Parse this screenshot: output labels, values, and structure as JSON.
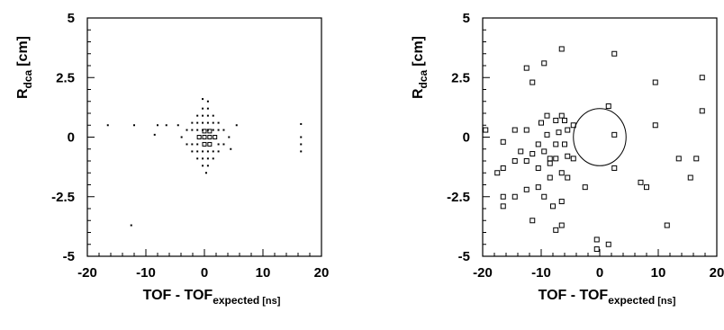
{
  "chart_data": [
    {
      "type": "scatter",
      "xlabel": {
        "main": "TOF - TOF",
        "sub": "expected",
        "unit": "[ns]"
      },
      "ylabel": {
        "main": "R",
        "sub": "dca",
        "unit": "[cm]"
      },
      "xlim": [
        -20,
        20
      ],
      "ylim": [
        -5,
        5
      ],
      "xticks": [
        "-20",
        "-10",
        "0",
        "10",
        "20"
      ],
      "yticks": [
        "-5",
        "-2.5",
        "0",
        "2.5",
        "5"
      ],
      "grid": false,
      "markers": "points-and-boxes",
      "boxes": [
        {
          "x": -0.9,
          "y": 0.0
        },
        {
          "x": 0.0,
          "y": 0.0
        },
        {
          "x": 0.9,
          "y": 0.0
        },
        {
          "x": 1.8,
          "y": 0.0
        },
        {
          "x": 0.0,
          "y": -0.3
        },
        {
          "x": 0.9,
          "y": -0.3
        },
        {
          "x": 0.0,
          "y": 0.25
        },
        {
          "x": 0.9,
          "y": 0.25
        }
      ],
      "points": [
        {
          "x": -3.0,
          "y": 0.3
        },
        {
          "x": -2.1,
          "y": 0.3
        },
        {
          "x": -1.2,
          "y": 0.3
        },
        {
          "x": -0.3,
          "y": 0.3
        },
        {
          "x": 0.6,
          "y": 0.3
        },
        {
          "x": 1.5,
          "y": 0.3
        },
        {
          "x": 2.4,
          "y": 0.3
        },
        {
          "x": 3.3,
          "y": 0.3
        },
        {
          "x": -3.0,
          "y": -0.3
        },
        {
          "x": -2.1,
          "y": -0.3
        },
        {
          "x": -1.2,
          "y": -0.3
        },
        {
          "x": 2.4,
          "y": -0.3
        },
        {
          "x": 3.3,
          "y": -0.3
        },
        {
          "x": 4.2,
          "y": 0.0
        },
        {
          "x": -3.9,
          "y": 0.0
        },
        {
          "x": -2.1,
          "y": 0.6
        },
        {
          "x": -1.2,
          "y": 0.6
        },
        {
          "x": -0.3,
          "y": 0.6
        },
        {
          "x": 0.6,
          "y": 0.6
        },
        {
          "x": 1.5,
          "y": 0.6
        },
        {
          "x": 2.4,
          "y": 0.6
        },
        {
          "x": -2.1,
          "y": -0.6
        },
        {
          "x": -1.2,
          "y": -0.6
        },
        {
          "x": -0.3,
          "y": -0.6
        },
        {
          "x": 0.6,
          "y": -0.6
        },
        {
          "x": 1.5,
          "y": -0.6
        },
        {
          "x": 2.4,
          "y": -0.6
        },
        {
          "x": -1.2,
          "y": 0.9
        },
        {
          "x": -0.3,
          "y": 0.9
        },
        {
          "x": 0.6,
          "y": 0.9
        },
        {
          "x": 1.5,
          "y": 0.9
        },
        {
          "x": -1.2,
          "y": -0.9
        },
        {
          "x": -0.3,
          "y": -0.9
        },
        {
          "x": 0.6,
          "y": -0.9
        },
        {
          "x": 1.5,
          "y": -0.9
        },
        {
          "x": -0.3,
          "y": 1.2
        },
        {
          "x": 0.6,
          "y": 1.2
        },
        {
          "x": -0.3,
          "y": -1.2
        },
        {
          "x": 0.6,
          "y": -1.2
        },
        {
          "x": -0.3,
          "y": 1.6
        },
        {
          "x": 0.6,
          "y": 1.5
        },
        {
          "x": 0.3,
          "y": -1.5
        },
        {
          "x": -4.5,
          "y": 0.5
        },
        {
          "x": -6.5,
          "y": 0.5
        },
        {
          "x": -8.0,
          "y": 0.5
        },
        {
          "x": -12.0,
          "y": 0.5
        },
        {
          "x": -16.5,
          "y": 0.5
        },
        {
          "x": 5.5,
          "y": 0.5
        },
        {
          "x": 4.5,
          "y": -0.5
        },
        {
          "x": 16.5,
          "y": 0.55
        },
        {
          "x": 16.5,
          "y": 0.0
        },
        {
          "x": 16.5,
          "y": -0.3
        },
        {
          "x": 16.5,
          "y": -0.6
        },
        {
          "x": -12.5,
          "y": -3.7
        },
        {
          "x": -8.5,
          "y": 0.1
        }
      ]
    },
    {
      "type": "scatter",
      "xlabel": {
        "main": "TOF - TOF",
        "sub": "expected",
        "unit": "[ns]"
      },
      "ylabel": {
        "main": "R",
        "sub": "dca",
        "unit": "[cm]"
      },
      "xlim": [
        -20,
        20
      ],
      "ylim": [
        -5,
        5
      ],
      "xticks": [
        "-20",
        "-10",
        "0",
        "10",
        "20"
      ],
      "yticks": [
        "-5",
        "-2.5",
        "0",
        "2.5",
        "5"
      ],
      "grid": false,
      "markers": "boxes",
      "ellipse": {
        "cx": 0.0,
        "cy": 0.0,
        "rx": 4.5,
        "ry": 1.2
      },
      "boxes": [
        {
          "x": -6.5,
          "y": 3.7
        },
        {
          "x": -12.5,
          "y": 2.9
        },
        {
          "x": -9.5,
          "y": 3.1
        },
        {
          "x": -11.5,
          "y": 2.3
        },
        {
          "x": 2.5,
          "y": 3.5
        },
        {
          "x": 17.5,
          "y": 2.5
        },
        {
          "x": 9.5,
          "y": 2.3
        },
        {
          "x": 17.5,
          "y": 1.1
        },
        {
          "x": -12.5,
          "y": 0.3
        },
        {
          "x": -9.0,
          "y": 0.9
        },
        {
          "x": -7.5,
          "y": 0.7
        },
        {
          "x": -10.0,
          "y": 0.6
        },
        {
          "x": -6.5,
          "y": 0.9
        },
        {
          "x": -6.0,
          "y": 0.7
        },
        {
          "x": -4.5,
          "y": 0.5
        },
        {
          "x": -5.5,
          "y": 0.3
        },
        {
          "x": -19.5,
          "y": 0.3
        },
        {
          "x": -14.5,
          "y": 0.3
        },
        {
          "x": -16.5,
          "y": -0.2
        },
        {
          "x": -13.5,
          "y": -0.6
        },
        {
          "x": 1.5,
          "y": 1.3
        },
        {
          "x": 2.5,
          "y": 0.1
        },
        {
          "x": 9.5,
          "y": 0.5
        },
        {
          "x": -7.0,
          "y": 0.2
        },
        {
          "x": -9.0,
          "y": 0.1
        },
        {
          "x": -10.5,
          "y": -0.3
        },
        {
          "x": -7.5,
          "y": -0.3
        },
        {
          "x": -6.0,
          "y": -0.3
        },
        {
          "x": -9.5,
          "y": -0.6
        },
        {
          "x": -11.5,
          "y": -0.7
        },
        {
          "x": -8.5,
          "y": -0.9
        },
        {
          "x": -7.5,
          "y": -0.9
        },
        {
          "x": -5.5,
          "y": -0.8
        },
        {
          "x": -4.5,
          "y": -0.9
        },
        {
          "x": -8.5,
          "y": -1.1
        },
        {
          "x": -10.5,
          "y": -1.3
        },
        {
          "x": -12.5,
          "y": -1.0
        },
        {
          "x": -14.5,
          "y": -1.0
        },
        {
          "x": -16.5,
          "y": -1.3
        },
        {
          "x": -17.5,
          "y": -1.5
        },
        {
          "x": -6.5,
          "y": -1.5
        },
        {
          "x": -8.5,
          "y": -1.7
        },
        {
          "x": -5.5,
          "y": -1.7
        },
        {
          "x": -12.5,
          "y": -2.2
        },
        {
          "x": -10.5,
          "y": -2.1
        },
        {
          "x": -14.5,
          "y": -2.5
        },
        {
          "x": -16.5,
          "y": -2.5
        },
        {
          "x": -9.5,
          "y": -2.5
        },
        {
          "x": -6.5,
          "y": -2.7
        },
        {
          "x": -2.5,
          "y": -2.1
        },
        {
          "x": -16.5,
          "y": -2.9
        },
        {
          "x": -8.0,
          "y": -2.9
        },
        {
          "x": -11.5,
          "y": -3.5
        },
        {
          "x": -6.5,
          "y": -3.7
        },
        {
          "x": -7.5,
          "y": -3.9
        },
        {
          "x": 2.5,
          "y": -1.3
        },
        {
          "x": 7.0,
          "y": -1.9
        },
        {
          "x": 8.0,
          "y": -2.1
        },
        {
          "x": 11.5,
          "y": -3.7
        },
        {
          "x": 13.5,
          "y": -0.9
        },
        {
          "x": 16.5,
          "y": -0.9
        },
        {
          "x": 15.5,
          "y": -1.7
        },
        {
          "x": -0.5,
          "y": -4.3
        },
        {
          "x": 1.5,
          "y": -4.5
        },
        {
          "x": -0.5,
          "y": -4.7
        }
      ]
    }
  ]
}
